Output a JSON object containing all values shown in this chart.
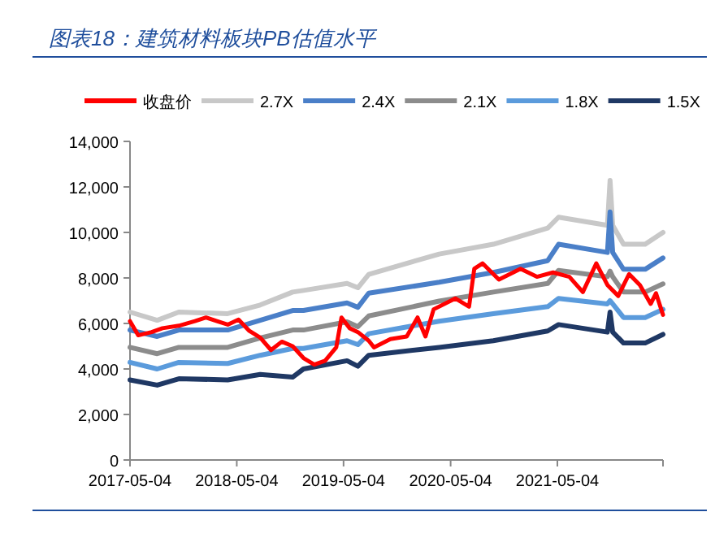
{
  "chart_data": {
    "type": "line",
    "title": "图表18：建筑材料板块PB估值水平",
    "legend": "top",
    "grid": false,
    "marker": "none",
    "line_style": "solid",
    "xlim": [
      "2017-05-04",
      "2022-04-30"
    ],
    "xticks": [
      "2017-05-04",
      "2018-05-04",
      "2019-05-04",
      "2020-05-04",
      "2021-05-04"
    ],
    "ylim": [
      0,
      14000
    ],
    "yticks": [
      {
        "value": 0,
        "label": "0"
      },
      {
        "value": 2000,
        "label": "2,000"
      },
      {
        "value": 4000,
        "label": "4,000"
      },
      {
        "value": 6000,
        "label": "6,000"
      },
      {
        "value": 8000,
        "label": "8,000"
      },
      {
        "value": 10000,
        "label": "10,000"
      },
      {
        "value": 12000,
        "label": "12,000"
      },
      {
        "value": 14000,
        "label": "14,000"
      }
    ],
    "series": [
      {
        "name": "收盘价",
        "color": "#ff0000",
        "x": [
          "2017-05-04",
          "2017-06-01",
          "2017-07-17",
          "2017-08-23",
          "2017-10-18",
          "2017-12-12",
          "2018-01-19",
          "2018-02-25",
          "2018-04-03",
          "2018-05-10",
          "2018-06-16",
          "2018-07-23",
          "2018-08-29",
          "2018-10-05",
          "2018-11-11",
          "2018-12-18",
          "2019-01-24",
          "2019-03-02",
          "2019-04-09",
          "2019-04-27",
          "2019-05-25",
          "2019-06-22",
          "2019-07-29",
          "2019-08-16",
          "2019-10-11",
          "2019-12-06",
          "2020-01-12",
          "2020-02-08",
          "2020-03-07",
          "2020-05-20",
          "2020-07-06",
          "2020-07-24",
          "2020-08-21",
          "2020-10-16",
          "2020-12-29",
          "2021-02-23",
          "2021-04-19",
          "2021-06-14",
          "2021-07-30",
          "2021-09-14",
          "2021-10-22",
          "2021-11-28",
          "2022-01-04",
          "2022-02-10",
          "2022-03-19",
          "2022-04-06",
          "2022-04-30"
        ],
        "values": [
          6100,
          5480,
          5620,
          5790,
          5900,
          6100,
          6260,
          6100,
          5950,
          6170,
          5670,
          5380,
          4830,
          5200,
          5000,
          4480,
          4190,
          4360,
          4950,
          6260,
          5790,
          5620,
          5240,
          4950,
          5310,
          5430,
          6260,
          5430,
          6620,
          7100,
          6740,
          8410,
          8640,
          7930,
          8400,
          8050,
          8240,
          8050,
          7380,
          8640,
          7690,
          7210,
          8170,
          7690,
          6860,
          7330,
          6380
        ]
      },
      {
        "name": "2.7X",
        "color": "#c8c8c8",
        "x": [
          "2017-05-04",
          "2017-08-05",
          "2017-10-18",
          "2018-04-03",
          "2018-07-23",
          "2018-11-11",
          "2018-12-18",
          "2019-05-16",
          "2019-06-22",
          "2019-07-29",
          "2020-03-26",
          "2020-09-27",
          "2021-04-01",
          "2021-05-08",
          "2021-10-22",
          "2021-10-31",
          "2021-11-09",
          "2021-12-16",
          "2022-02-28",
          "2022-04-30"
        ],
        "values": [
          6500,
          6140,
          6500,
          6430,
          6810,
          7380,
          7450,
          7760,
          7570,
          8160,
          9050,
          9480,
          10190,
          10670,
          10310,
          12290,
          10310,
          9480,
          9480,
          10000
        ]
      },
      {
        "name": "2.4X",
        "color": "#4a7fc8",
        "x": [
          "2017-05-04",
          "2017-08-05",
          "2017-10-18",
          "2018-04-03",
          "2018-07-23",
          "2018-11-11",
          "2018-12-18",
          "2019-05-16",
          "2019-06-22",
          "2019-07-29",
          "2020-03-26",
          "2020-09-27",
          "2021-04-01",
          "2021-05-08",
          "2021-10-22",
          "2021-10-31",
          "2021-11-09",
          "2021-12-16",
          "2022-02-28",
          "2022-04-30"
        ],
        "values": [
          5710,
          5430,
          5710,
          5710,
          6140,
          6570,
          6570,
          6900,
          6710,
          7330,
          7810,
          8240,
          8760,
          9480,
          9120,
          10900,
          9120,
          8380,
          8380,
          8880
        ]
      },
      {
        "name": "2.1X",
        "color": "#8c8c8c",
        "x": [
          "2017-05-04",
          "2017-08-05",
          "2017-10-18",
          "2018-04-03",
          "2018-07-23",
          "2018-11-11",
          "2018-12-18",
          "2019-05-16",
          "2019-06-22",
          "2019-07-29",
          "2020-03-26",
          "2020-09-27",
          "2021-04-01",
          "2021-05-08",
          "2021-10-22",
          "2021-10-31",
          "2021-11-09",
          "2021-12-16",
          "2022-02-28",
          "2022-04-30"
        ],
        "values": [
          4950,
          4670,
          4950,
          4950,
          5360,
          5710,
          5710,
          6070,
          5860,
          6330,
          6980,
          7380,
          7760,
          8330,
          8050,
          8300,
          8050,
          7380,
          7380,
          7740
        ]
      },
      {
        "name": "1.8X",
        "color": "#5b9bdc",
        "x": [
          "2017-05-04",
          "2017-08-05",
          "2017-10-18",
          "2018-04-03",
          "2018-07-23",
          "2018-11-11",
          "2018-12-18",
          "2019-05-16",
          "2019-06-22",
          "2019-07-29",
          "2020-03-26",
          "2020-09-27",
          "2021-04-01",
          "2021-05-08",
          "2021-10-22",
          "2021-10-31",
          "2021-11-09",
          "2021-12-16",
          "2022-02-28",
          "2022-04-30"
        ],
        "values": [
          4290,
          4000,
          4290,
          4240,
          4600,
          4900,
          4900,
          5240,
          5070,
          5550,
          6100,
          6430,
          6740,
          7100,
          6860,
          7000,
          6860,
          6260,
          6260,
          6620
        ]
      },
      {
        "name": "1.5X",
        "color": "#1f3864",
        "x": [
          "2017-05-04",
          "2017-08-05",
          "2017-10-18",
          "2018-04-03",
          "2018-07-23",
          "2018-11-11",
          "2018-12-18",
          "2019-05-16",
          "2019-06-22",
          "2019-07-29",
          "2020-03-26",
          "2020-09-27",
          "2021-04-01",
          "2021-05-08",
          "2021-10-22",
          "2021-10-31",
          "2021-11-09",
          "2021-12-16",
          "2022-02-28",
          "2022-04-30"
        ],
        "values": [
          3520,
          3290,
          3570,
          3520,
          3760,
          3640,
          4000,
          4360,
          4120,
          4600,
          4950,
          5240,
          5670,
          5950,
          5620,
          6500,
          5620,
          5140,
          5140,
          5520
        ]
      }
    ]
  }
}
